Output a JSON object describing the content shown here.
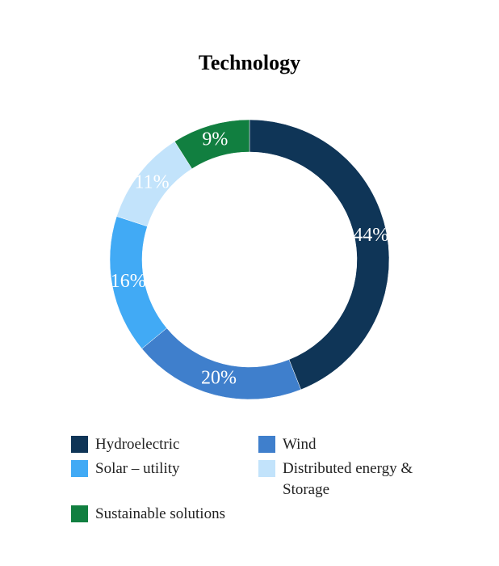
{
  "chart_data": {
    "type": "donut",
    "title": "Technology",
    "categories": [
      "Hydroelectric",
      "Wind",
      "Solar – utility",
      "Distributed energy & Storage",
      "Sustainable solutions"
    ],
    "values": [
      44,
      20,
      16,
      11,
      9
    ],
    "value_labels": [
      "44%",
      "20%",
      "16%",
      "11%",
      "9%"
    ],
    "colors": [
      "#0f3557",
      "#3f7fcc",
      "#41aaf5",
      "#c2e3fb",
      "#117f40"
    ]
  }
}
